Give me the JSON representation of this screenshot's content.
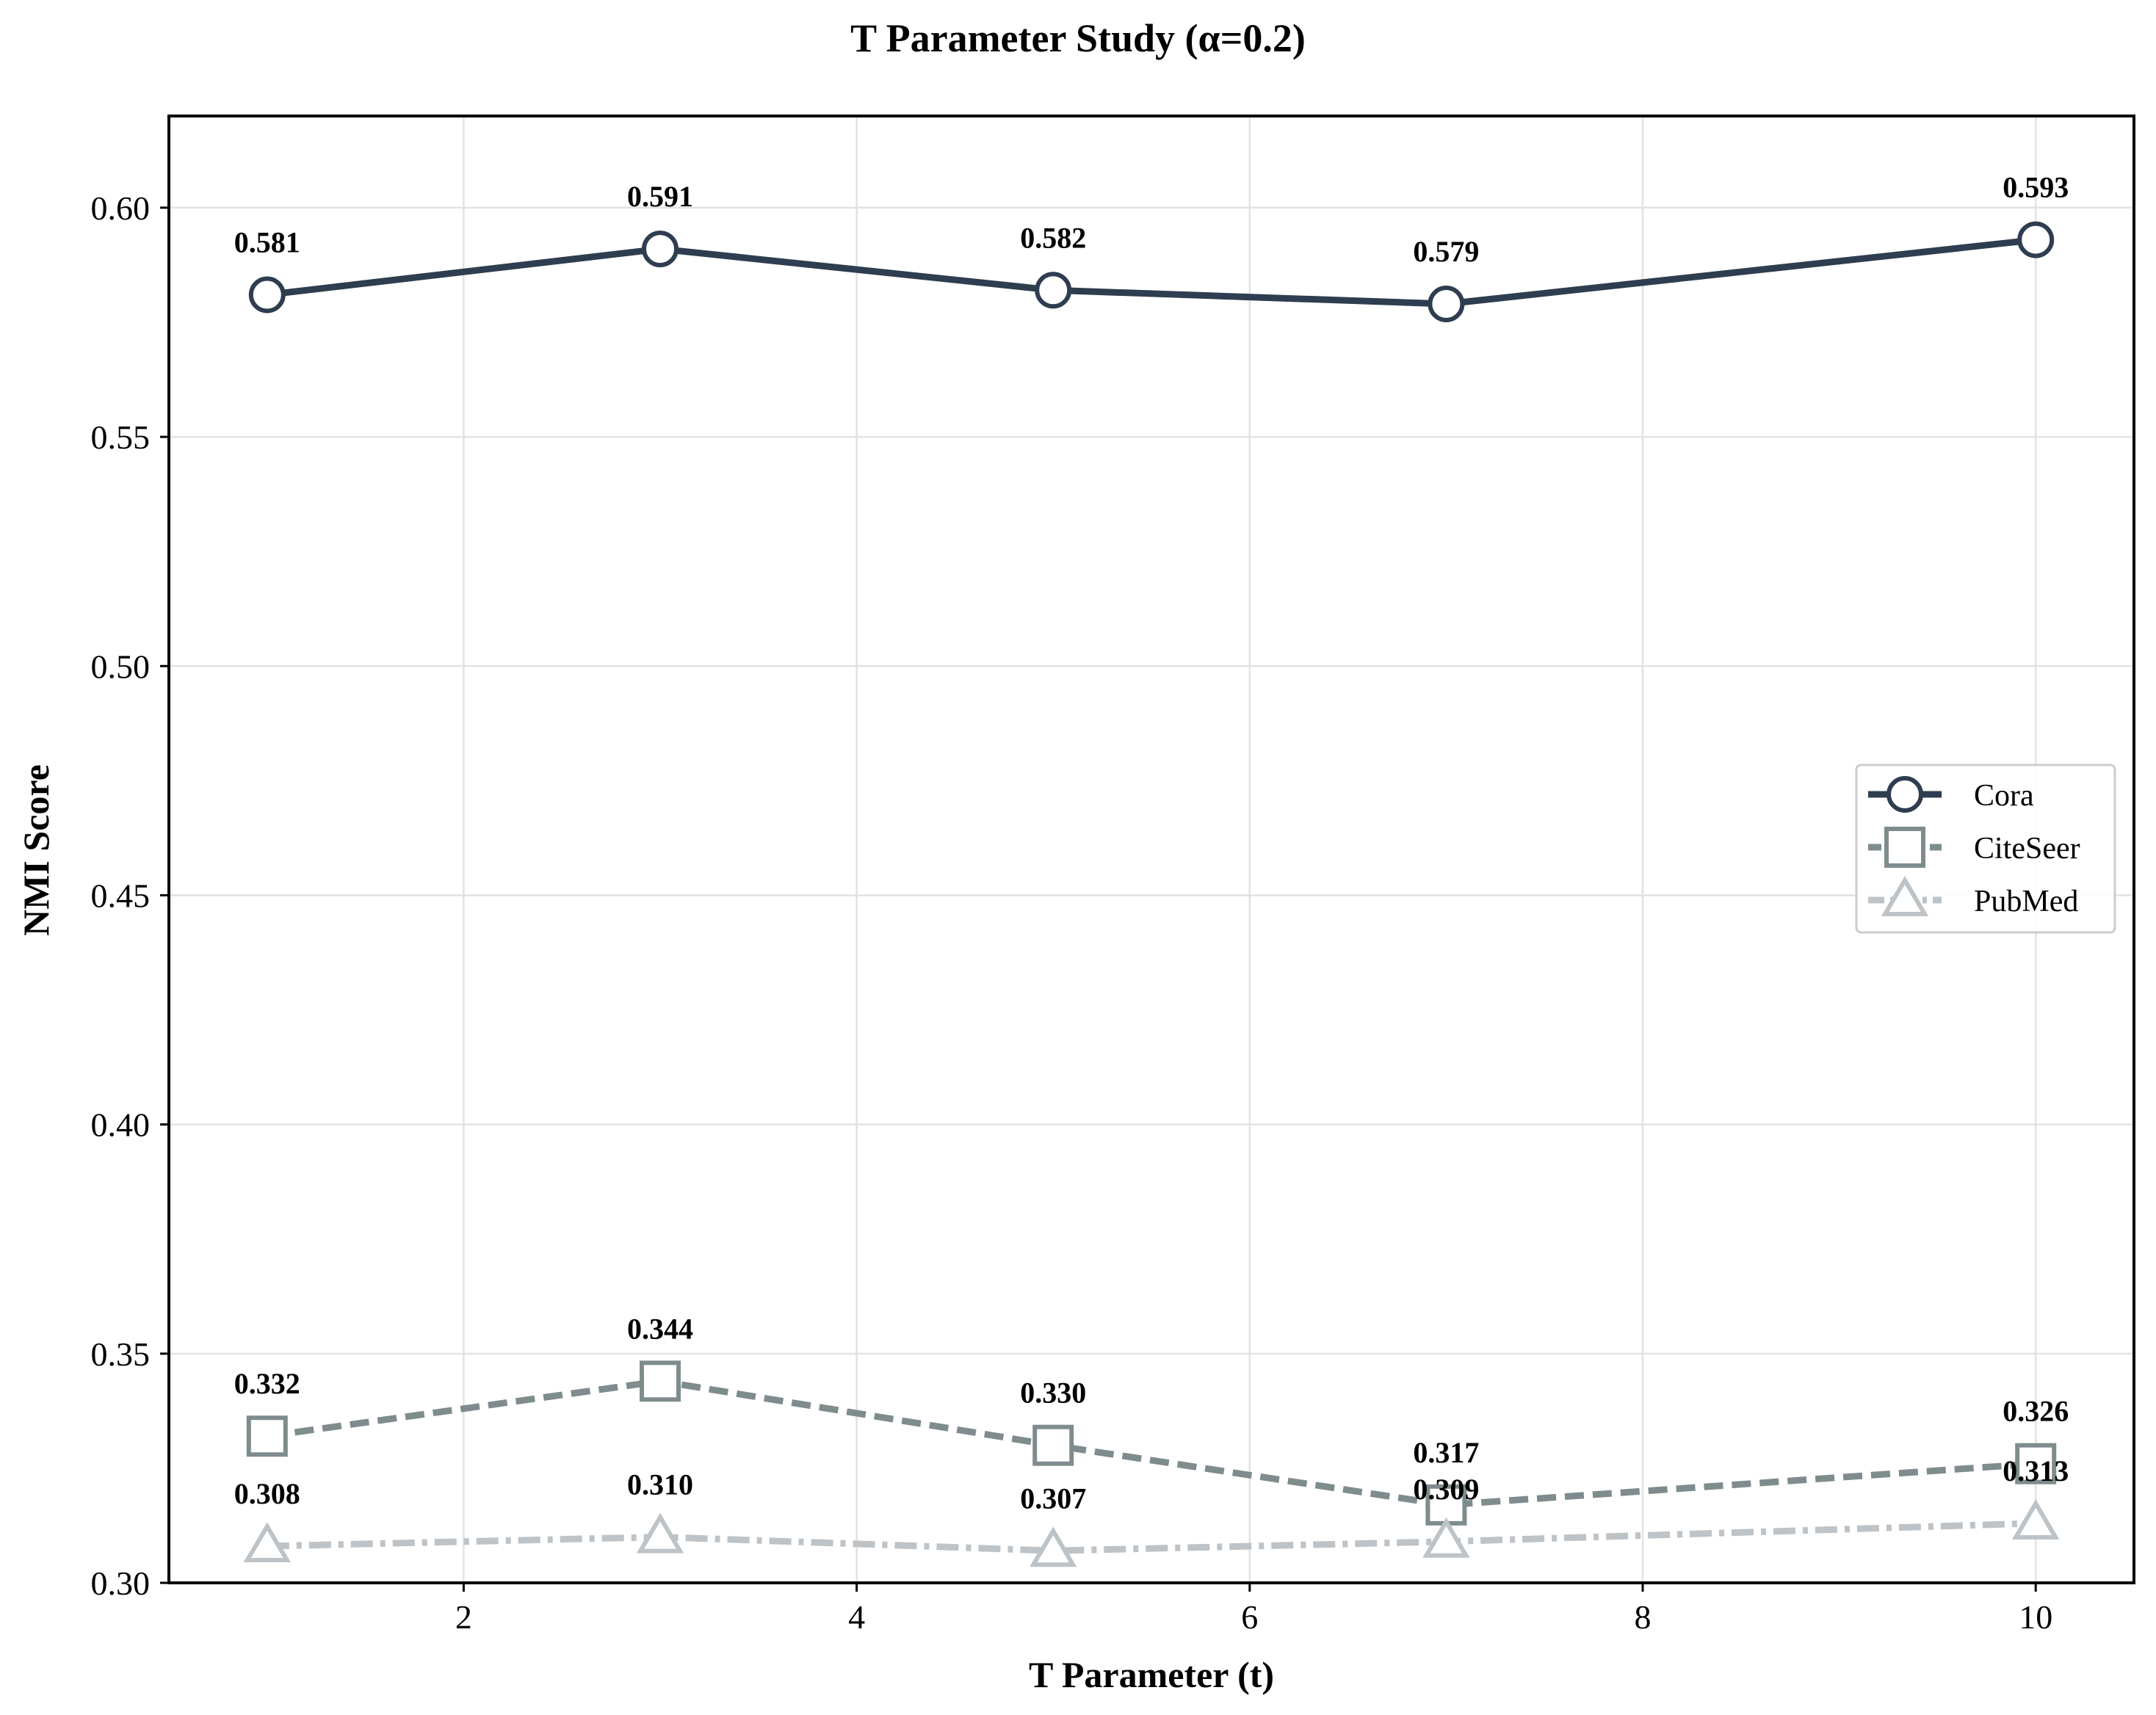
{
  "chart_data": {
    "type": "line",
    "title": "T Parameter Study (α=0.2)",
    "xlabel": "T Parameter (t)",
    "ylabel": "NMI Score",
    "xlim": [
      0.5,
      10.5
    ],
    "ylim": [
      0.3,
      0.62
    ],
    "x_ticks": [
      2,
      4,
      6,
      8,
      10
    ],
    "x_tick_labels": [
      "2",
      "4",
      "6",
      "8",
      "10"
    ],
    "y_ticks": [
      0.3,
      0.35,
      0.4,
      0.45,
      0.5,
      0.55,
      0.6
    ],
    "y_tick_labels": [
      "0.30",
      "0.35",
      "0.40",
      "0.45",
      "0.50",
      "0.55",
      "0.60"
    ],
    "grid": true,
    "legend_position": "center-right",
    "x": [
      1,
      3,
      5,
      7,
      10
    ],
    "series": [
      {
        "name": "Cora",
        "values": [
          0.581,
          0.591,
          0.582,
          0.579,
          0.593
        ],
        "labels": [
          "0.581",
          "0.591",
          "0.582",
          "0.579",
          "0.593"
        ],
        "color": "#2e3d4f",
        "marker": "circle",
        "line_style": "solid"
      },
      {
        "name": "CiteSeer",
        "values": [
          0.332,
          0.344,
          0.33,
          0.317,
          0.326
        ],
        "labels": [
          "0.332",
          "0.344",
          "0.330",
          "0.317",
          "0.326"
        ],
        "color": "#7f8c8d",
        "marker": "square",
        "line_style": "dashed"
      },
      {
        "name": "PubMed",
        "values": [
          0.308,
          0.31,
          0.307,
          0.309,
          0.313
        ],
        "labels": [
          "0.308",
          "0.310",
          "0.307",
          "0.309",
          "0.313"
        ],
        "color": "#bdc3c7",
        "marker": "triangle",
        "line_style": "dashdot"
      }
    ]
  }
}
